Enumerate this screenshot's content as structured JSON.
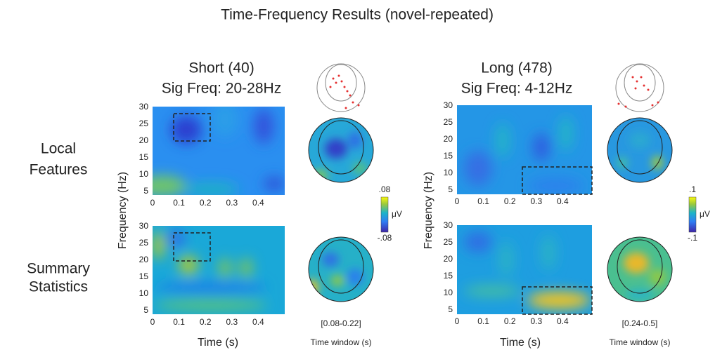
{
  "title": "Time-Frequency Results (novel-repeated)",
  "row_labels": [
    [
      "Local",
      "Features"
    ],
    [
      "Summary",
      "Statistics"
    ]
  ],
  "columns": [
    {
      "title": "Short (40)",
      "subtitle": "Sig Freq: 20-28Hz",
      "time_window": "[0.08-0.22]",
      "colorbar": {
        "max": ".08",
        "min": "-.08",
        "unit": "μV"
      }
    },
    {
      "title": "Long (478)",
      "subtitle": "Sig Freq: 4-12Hz",
      "time_window": "[0.24-0.5]",
      "colorbar": {
        "max": ".1",
        "min": "-.1",
        "unit": "μV"
      }
    }
  ],
  "y_axis_label": "Frequency (Hz)",
  "x_axis_label": "Time (s)",
  "window_label": "Time window (s)",
  "yticks": [
    30,
    25,
    20,
    15,
    10,
    5
  ],
  "xticks": [
    0,
    0.1,
    0.2,
    0.3,
    0.4
  ]
}
